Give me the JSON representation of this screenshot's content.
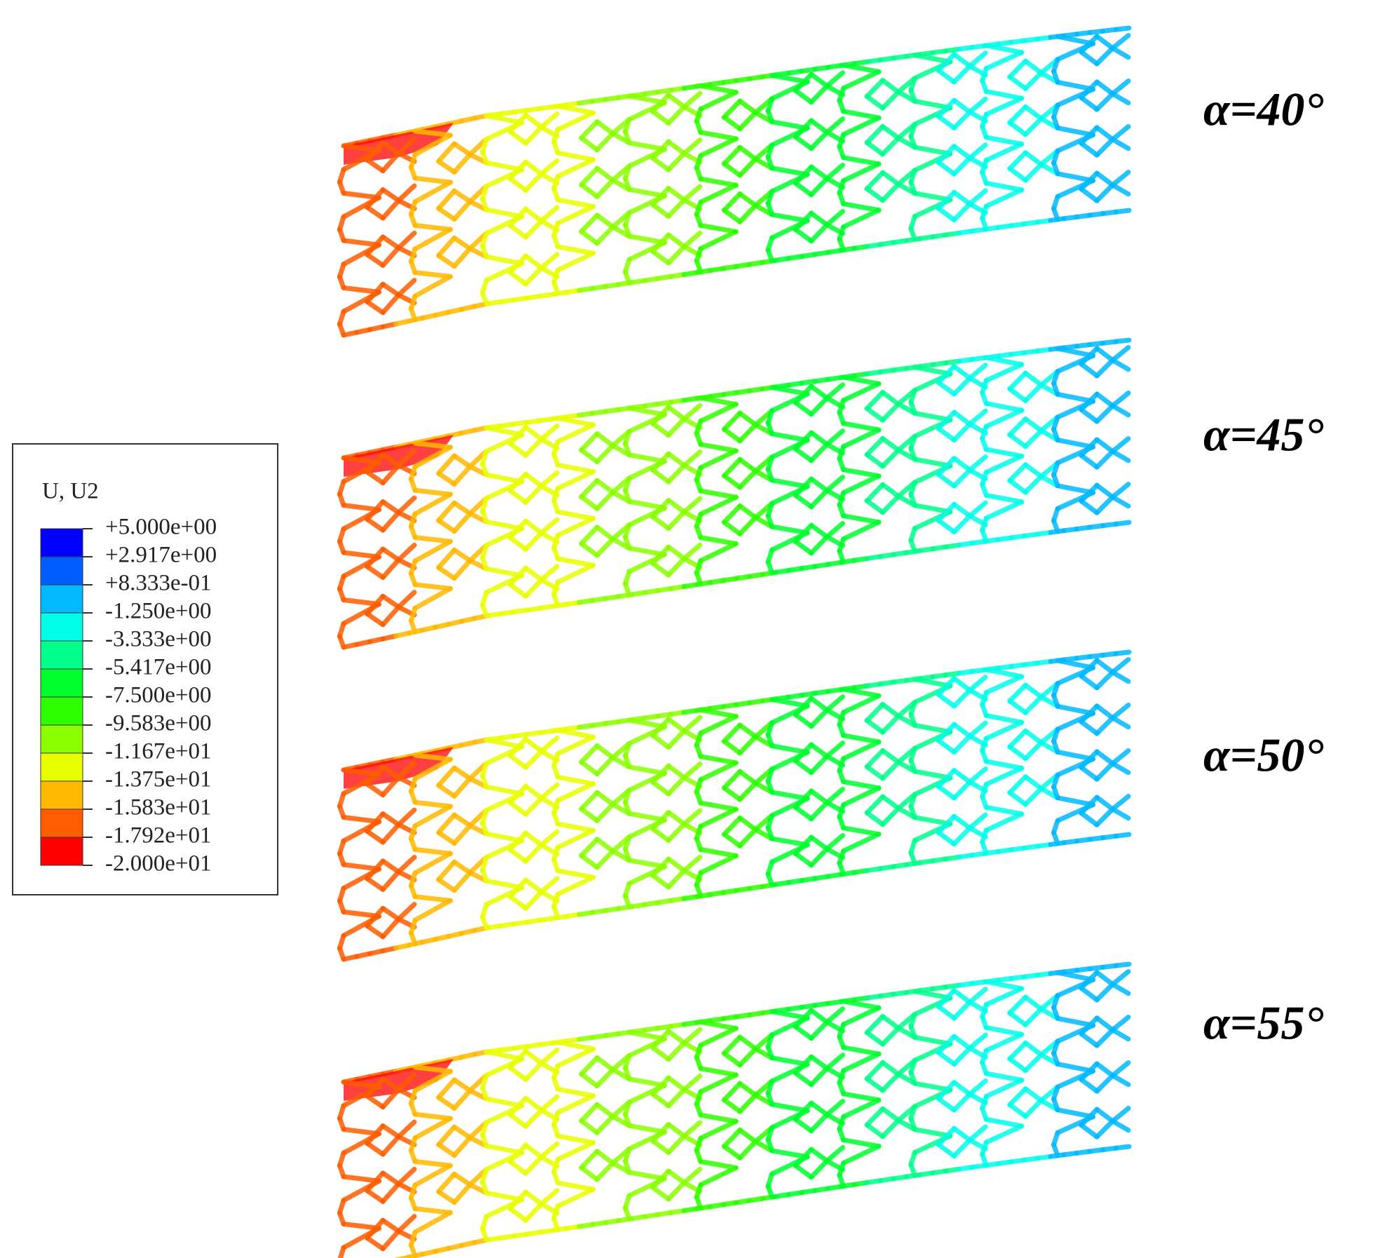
{
  "legend": {
    "title": "U, U2",
    "levels": [
      "+5.000e+00",
      "+2.917e+00",
      "+8.333e-01",
      "-1.250e+00",
      "-3.333e+00",
      "-5.417e+00",
      "-7.500e+00",
      "-9.583e+00",
      "-1.167e+01",
      "-1.375e+01",
      "-1.583e+01",
      "-1.792e+01",
      "-2.000e+01"
    ],
    "colors": [
      "#0000ff",
      "#005dff",
      "#00b9ff",
      "#00ffe8",
      "#00ff8b",
      "#00ff2e",
      "#2eff00",
      "#8bff00",
      "#e8ff00",
      "#ffb900",
      "#ff5d00",
      "#ff0000"
    ]
  },
  "panels": [
    {
      "label": "α=40°"
    },
    {
      "label": "α=45°"
    },
    {
      "label": "α=50°"
    },
    {
      "label": "α=55°"
    }
  ]
}
